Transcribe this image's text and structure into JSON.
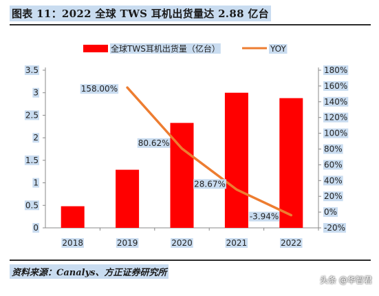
{
  "header": {
    "title": "图表 11：2022 全球 TWS 耳机出货量达 2.88 亿台"
  },
  "footer": {
    "source": "资料来源：Canalys、方正证券研究所",
    "watermark": "头条 @华智君"
  },
  "colors": {
    "bar": "#ff0000",
    "line": "#ed7d31",
    "highlight": "#c9dcf0"
  },
  "chart_data": {
    "type": "bar",
    "categories": [
      "2018",
      "2019",
      "2020",
      "2021",
      "2022"
    ],
    "series": [
      {
        "name": "全球TWS耳机出货量（亿台）",
        "type": "bar",
        "axis": "left",
        "values": [
          0.48,
          1.29,
          2.33,
          3.0,
          2.88
        ]
      },
      {
        "name": "YOY",
        "type": "line",
        "axis": "right",
        "values": [
          null,
          1.58,
          0.8062,
          0.2867,
          -0.0394
        ],
        "data_labels": [
          "",
          "158.00%",
          "80.62%",
          "28.67%",
          "-3.94%"
        ]
      }
    ],
    "y_left": {
      "min": 0,
      "max": 3.5,
      "ticks": [
        "0",
        "0.5",
        "1",
        "1.5",
        "2",
        "2.5",
        "3",
        "3.5"
      ]
    },
    "y_right": {
      "min": -0.2,
      "max": 1.8,
      "ticks": [
        "-20%",
        "0%",
        "20%",
        "40%",
        "60%",
        "80%",
        "100%",
        "120%",
        "140%",
        "160%",
        "180%"
      ]
    },
    "legend_position": "top",
    "grid": false
  }
}
